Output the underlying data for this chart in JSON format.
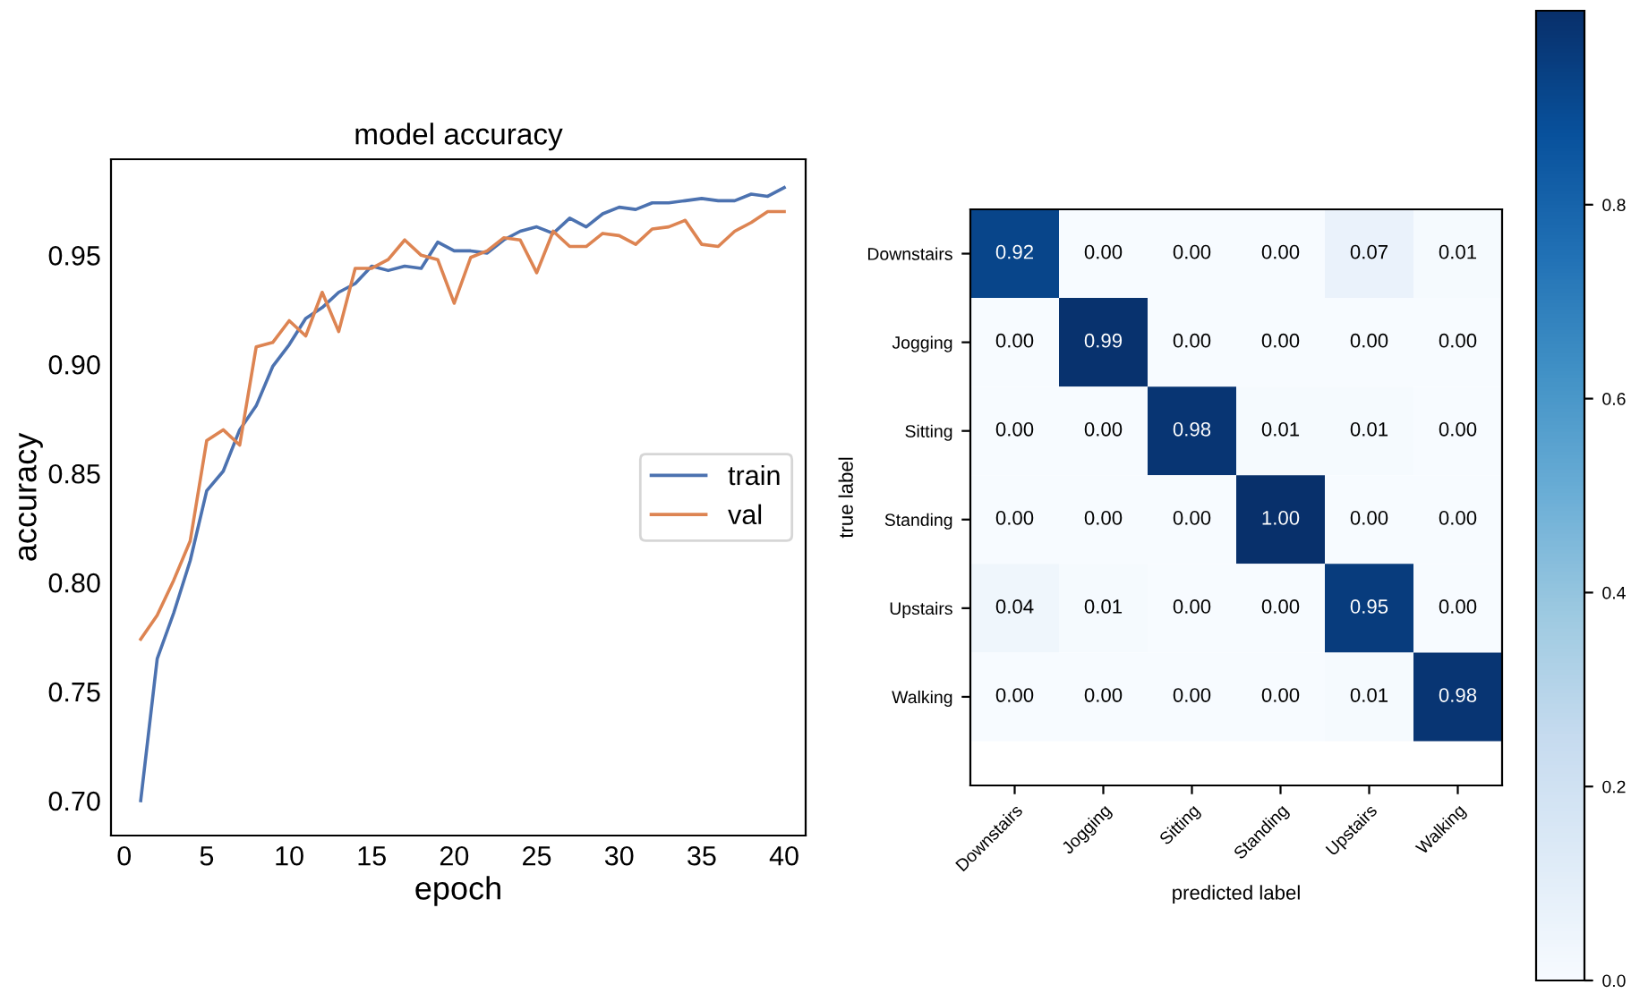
{
  "chart_data": [
    {
      "type": "line",
      "title": "model accuracy",
      "xlabel": "epoch",
      "ylabel": "accuracy",
      "x": [
        1,
        2,
        3,
        4,
        5,
        6,
        7,
        8,
        9,
        10,
        11,
        12,
        13,
        14,
        15,
        16,
        17,
        18,
        19,
        20,
        21,
        22,
        23,
        24,
        25,
        26,
        27,
        28,
        29,
        30,
        31,
        32,
        33,
        34,
        35,
        36,
        37,
        38,
        39,
        40
      ],
      "series": [
        {
          "name": "train",
          "color": "#4c72b0",
          "values": [
            0.7,
            0.765,
            0.786,
            0.81,
            0.842,
            0.851,
            0.87,
            0.881,
            0.899,
            0.909,
            0.921,
            0.926,
            0.933,
            0.937,
            0.945,
            0.943,
            0.945,
            0.944,
            0.956,
            0.952,
            0.952,
            0.951,
            0.957,
            0.961,
            0.963,
            0.96,
            0.967,
            0.963,
            0.969,
            0.972,
            0.971,
            0.974,
            0.974,
            0.975,
            0.976,
            0.975,
            0.975,
            0.978,
            0.977,
            0.981
          ]
        },
        {
          "name": "val",
          "color": "#dd8452",
          "values": [
            0.774,
            0.785,
            0.801,
            0.819,
            0.865,
            0.87,
            0.863,
            0.908,
            0.91,
            0.92,
            0.913,
            0.933,
            0.915,
            0.944,
            0.944,
            0.948,
            0.957,
            0.95,
            0.948,
            0.928,
            0.949,
            0.952,
            0.958,
            0.957,
            0.942,
            0.961,
            0.954,
            0.954,
            0.96,
            0.959,
            0.955,
            0.962,
            0.963,
            0.966,
            0.955,
            0.954,
            0.961,
            0.965,
            0.97,
            0.97
          ]
        }
      ],
      "xlim": [
        -0.8,
        41.3
      ],
      "ylim": [
        0.684,
        0.994
      ],
      "xticks": [
        0,
        5,
        10,
        15,
        20,
        25,
        30,
        35,
        40
      ],
      "yticks": [
        {
          "value": 0.7,
          "label": "0.70"
        },
        {
          "value": 0.75,
          "label": "0.75"
        },
        {
          "value": 0.8,
          "label": "0.80"
        },
        {
          "value": 0.85,
          "label": "0.85"
        },
        {
          "value": 0.9,
          "label": "0.90"
        },
        {
          "value": 0.95,
          "label": "0.95"
        }
      ],
      "legend": "center right",
      "line_style": "solid",
      "marker": "none"
    },
    {
      "type": "heatmap",
      "xlabel": "predicted label",
      "ylabel": "true label",
      "categories": [
        "Downstairs",
        "Jogging",
        "Sitting",
        "Standing",
        "Upstairs",
        "Walking"
      ],
      "y_categories": [
        "Downstairs",
        "Jogging",
        "Sitting",
        "Standing",
        "Upstairs",
        "Walking"
      ],
      "cells": [
        [
          0.92,
          0,
          0,
          0,
          0.07,
          0.01
        ],
        [
          0,
          0.99,
          0,
          0,
          0,
          0
        ],
        [
          0,
          0,
          0.98,
          0.01,
          0.01,
          0
        ],
        [
          0,
          0,
          0,
          1.0,
          0,
          0
        ],
        [
          0.04,
          0.01,
          0,
          0,
          0.95,
          0
        ],
        [
          0,
          0,
          0,
          0,
          0.01,
          0.98
        ]
      ],
      "cell_labels": [
        [
          "0.92",
          "0.00",
          "0.00",
          "0.00",
          "0.07",
          "0.01"
        ],
        [
          "0.00",
          "0.99",
          "0.00",
          "0.00",
          "0.00",
          "0.00"
        ],
        [
          "0.00",
          "0.00",
          "0.98",
          "0.01",
          "0.01",
          "0.00"
        ],
        [
          "0.00",
          "0.00",
          "0.00",
          "1.00",
          "0.00",
          "0.00"
        ],
        [
          "0.04",
          "0.01",
          "0.00",
          "0.00",
          "0.95",
          "0.00"
        ],
        [
          "0.00",
          "0.00",
          "0.00",
          "0.00",
          "0.01",
          "0.98"
        ]
      ],
      "clim": [
        0,
        1
      ],
      "cticks": [
        {
          "value": 0,
          "label": "0.0"
        },
        {
          "value": 0.2,
          "label": "0.2"
        },
        {
          "value": 0.4,
          "label": "0.4"
        },
        {
          "value": 0.6,
          "label": "0.6"
        },
        {
          "value": 0.8,
          "label": "0.8"
        }
      ]
    }
  ]
}
